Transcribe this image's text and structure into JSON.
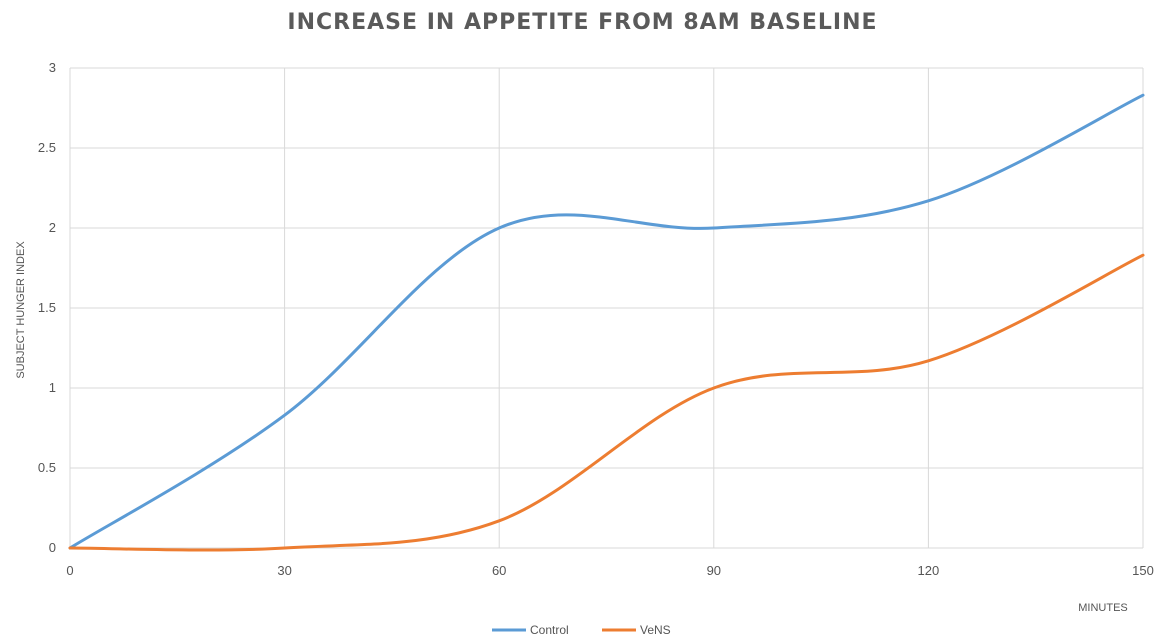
{
  "chart_data": {
    "type": "line",
    "title": "INCREASE IN APPETITE FROM 8AM BASELINE",
    "xlabel": "MINUTES",
    "ylabel": "SUBJECT HUNGER INDEX",
    "x": [
      0,
      30,
      60,
      90,
      120,
      150
    ],
    "x_ticks": [
      "0",
      "30",
      "60",
      "90",
      "120",
      "150"
    ],
    "y_ticks": [
      "0",
      "0.5",
      "1",
      "1.5",
      "2",
      "2.5",
      "3"
    ],
    "xlim": [
      0,
      150
    ],
    "ylim": [
      0,
      3
    ],
    "grid": true,
    "legend_position": "bottom",
    "series": [
      {
        "name": "Control",
        "color": "#5b9bd5",
        "values": [
          0,
          0.83,
          2.0,
          2.0,
          2.17,
          2.83
        ]
      },
      {
        "name": "VeNS",
        "color": "#ed7d31",
        "values": [
          0,
          0,
          0.17,
          1.0,
          1.17,
          1.83
        ]
      }
    ]
  }
}
